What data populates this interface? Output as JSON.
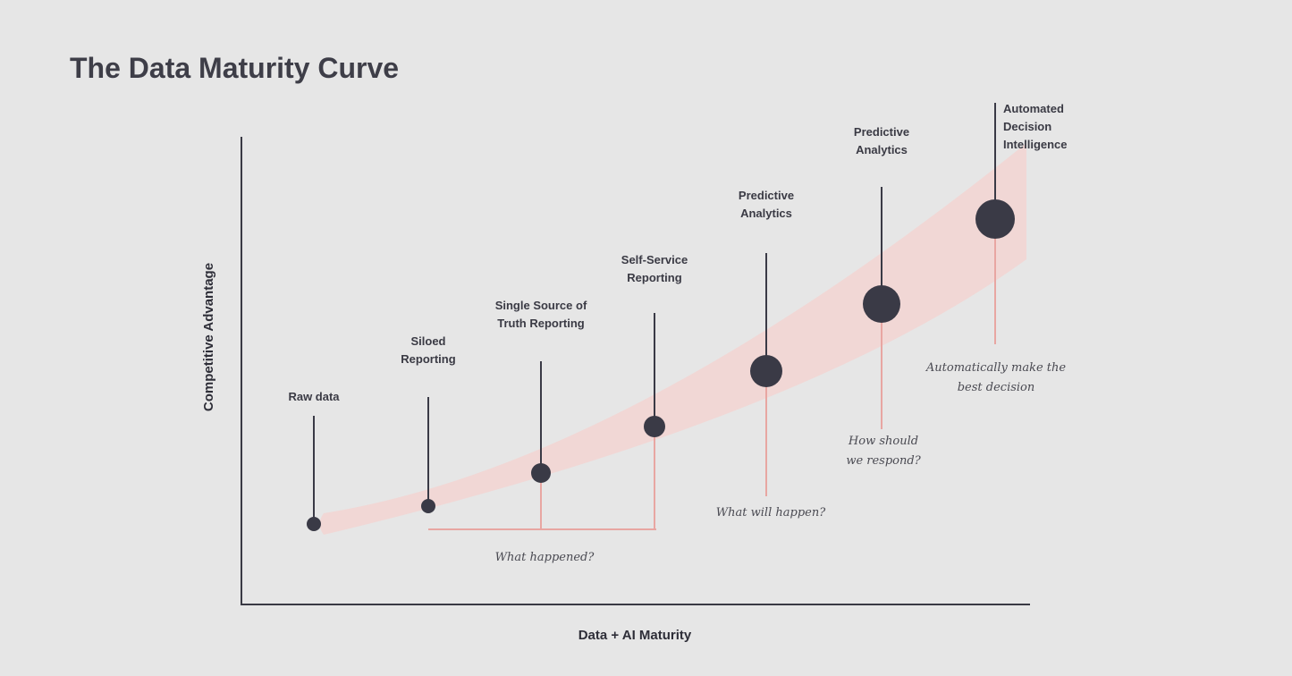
{
  "title": "The Data Maturity Curve",
  "x_axis_label": "Data + AI Maturity",
  "y_axis_label": "Competitive Advantage",
  "colors": {
    "background": "#e6e6e6",
    "ink": "#3a3a46",
    "band": "#f1d7d5",
    "accent_line": "#e8a6a2"
  },
  "stages": [
    {
      "id": "raw-data",
      "label_lines": [
        "Raw data"
      ]
    },
    {
      "id": "siloed-reporting",
      "label_lines": [
        "Siloed",
        "Reporting"
      ]
    },
    {
      "id": "single-source-of-truth",
      "label_lines": [
        "Single Source of",
        "Truth Reporting"
      ]
    },
    {
      "id": "self-service-reporting",
      "label_lines": [
        "Self-Service",
        "Reporting"
      ]
    },
    {
      "id": "predictive-analytics-1",
      "label_lines": [
        "Predictive",
        "Analytics"
      ]
    },
    {
      "id": "predictive-analytics-2",
      "label_lines": [
        "Predictive",
        "Analytics"
      ]
    },
    {
      "id": "automated-decision-intelligence",
      "label_lines": [
        "Automated",
        "Decision",
        "Intelligence"
      ]
    }
  ],
  "questions": [
    {
      "id": "what-happened",
      "lines": [
        "What happened?"
      ]
    },
    {
      "id": "what-will-happen",
      "lines": [
        "What will happen?"
      ]
    },
    {
      "id": "how-should-we-respond",
      "lines": [
        "How should",
        "we respond?"
      ]
    },
    {
      "id": "automatically-make-best-decision",
      "lines": [
        "Automatically make the",
        "best decision"
      ]
    }
  ]
}
